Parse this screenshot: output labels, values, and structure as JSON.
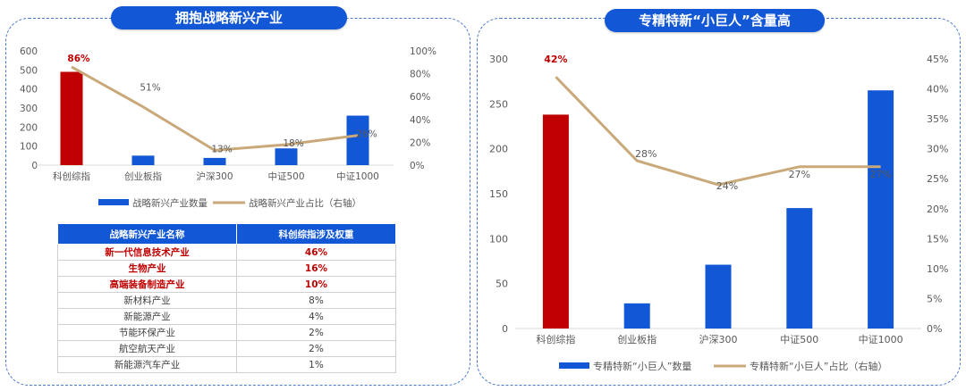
{
  "left_panel": {
    "title": "拥抱战略新兴产业",
    "table": {
      "headers": [
        "战略新兴产业名称",
        "科创综指涉及权重"
      ],
      "rows": [
        {
          "name": "新一代信息技术产业",
          "weight": "46%",
          "highlight": true
        },
        {
          "name": "生物产业",
          "weight": "16%",
          "highlight": true
        },
        {
          "name": "高端装备制造产业",
          "weight": "10%",
          "highlight": true
        },
        {
          "name": "新材料产业",
          "weight": "8%",
          "highlight": false
        },
        {
          "name": "新能源产业",
          "weight": "4%",
          "highlight": false
        },
        {
          "name": "节能环保产业",
          "weight": "2%",
          "highlight": false
        },
        {
          "name": "航空航天产业",
          "weight": "2%",
          "highlight": false
        },
        {
          "name": "新能源汽车产业",
          "weight": "1%",
          "highlight": false
        }
      ]
    }
  },
  "right_panel": {
    "title": "专精特新“小巨人”含量高"
  },
  "colors": {
    "blue": "#1257d6",
    "red": "#c00000",
    "line": "#c9a97a",
    "highlight_label": "#c00000"
  },
  "chart_data": [
    {
      "type": "bar",
      "categories": [
        "科创综指",
        "创业板指",
        "沪深300",
        "中证500",
        "中证1000"
      ],
      "series": [
        {
          "name": "战略新兴产业数量",
          "kind": "bar",
          "axis": "left",
          "values": [
            490,
            50,
            38,
            88,
            260
          ]
        },
        {
          "name": "战略新兴产业占比（右轴）",
          "kind": "line",
          "axis": "right",
          "values": [
            86,
            51,
            13,
            18,
            26
          ]
        }
      ],
      "data_labels": [
        "86%",
        "51%",
        "13%",
        "18%",
        "26%"
      ],
      "y_left": {
        "ticks": [
          0,
          100,
          200,
          300,
          400,
          500,
          600
        ],
        "lim": [
          0,
          600
        ]
      },
      "y_right": {
        "ticks": [
          "0%",
          "20%",
          "40%",
          "60%",
          "80%",
          "100%"
        ],
        "lim": [
          0,
          100
        ]
      },
      "highlight_category": 0,
      "legend_position": "bottom",
      "grid": false
    },
    {
      "type": "bar",
      "categories": [
        "科创综指",
        "创业板指",
        "沪深300",
        "中证500",
        "中证1000"
      ],
      "series": [
        {
          "name": "专精特新“小巨人”数量",
          "kind": "bar",
          "axis": "left",
          "values": [
            238,
            28,
            71,
            134,
            265
          ]
        },
        {
          "name": "专精特新“小巨人”占比（右轴）",
          "kind": "line",
          "axis": "right",
          "values": [
            42,
            28,
            24,
            27,
            27
          ]
        }
      ],
      "data_labels": [
        "42%",
        "28%",
        "24%",
        "27%",
        "27%"
      ],
      "y_left": {
        "ticks": [
          0,
          50,
          100,
          150,
          200,
          250,
          300
        ],
        "lim": [
          0,
          300
        ]
      },
      "y_right": {
        "ticks": [
          "0%",
          "5%",
          "10%",
          "15%",
          "20%",
          "25%",
          "30%",
          "35%",
          "40%",
          "45%"
        ],
        "lim": [
          0,
          45
        ]
      },
      "highlight_category": 0,
      "legend_position": "bottom",
      "grid": false
    }
  ]
}
